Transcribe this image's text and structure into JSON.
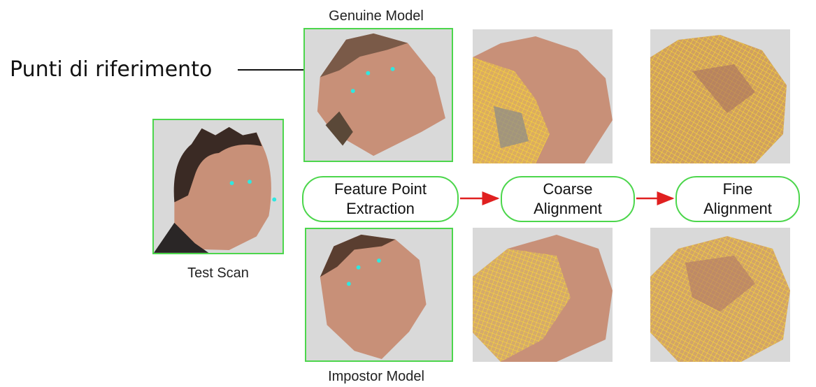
{
  "labels": {
    "genuine_model": "Genuine Model",
    "impostor_model": "Impostor Model",
    "test_scan": "Test Scan",
    "annotation": "Punti di riferimento"
  },
  "pipeline": {
    "step1": {
      "line1": "Feature Point",
      "line2": "Extraction"
    },
    "step2": {
      "line1": "Coarse",
      "line2": "Alignment"
    },
    "step3": {
      "line1": "Fine",
      "line2": "Alignment"
    }
  },
  "colors": {
    "frame_green": "#4cd64c",
    "arrow_red": "#e02020",
    "landmark_cyan": "#2ee8e0",
    "mesh_yellow": "#ffe030",
    "skin": "#c89078",
    "hair": "#3a2a24"
  }
}
